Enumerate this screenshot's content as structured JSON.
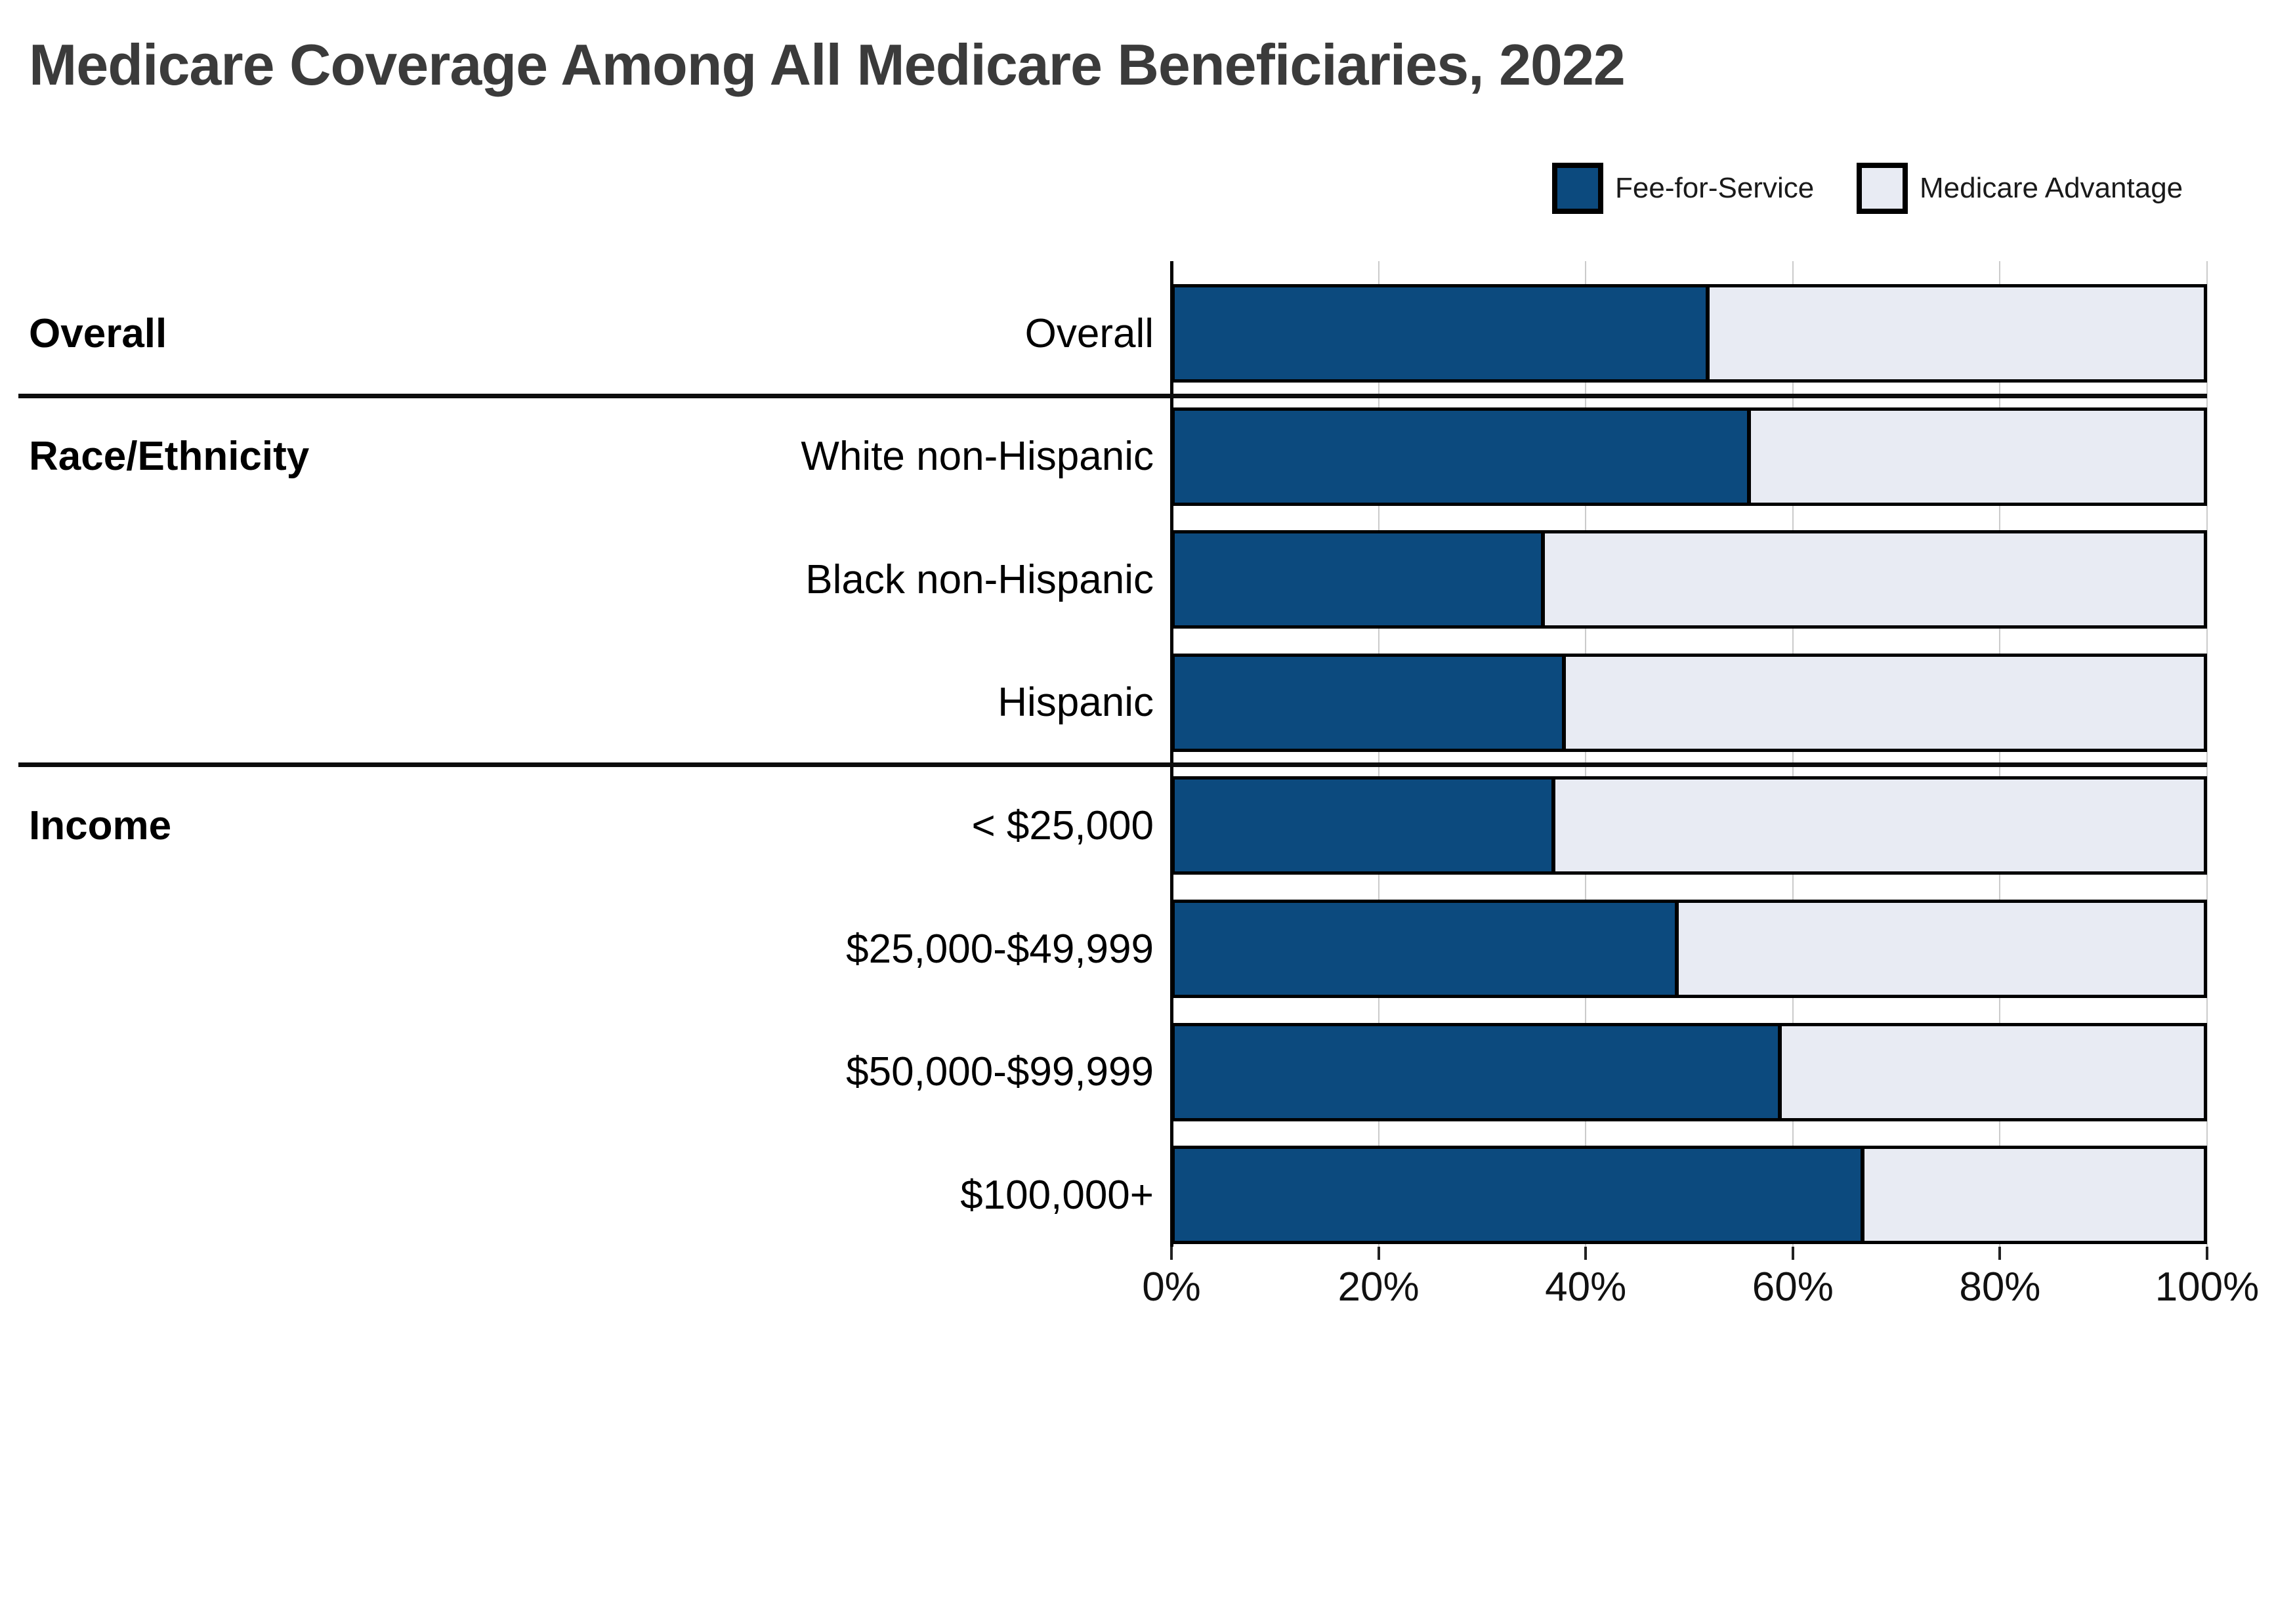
{
  "chart_data": {
    "type": "bar",
    "orientation": "horizontal-stacked",
    "title": "Medicare Coverage Among All Medicare Beneficiaries, 2022",
    "legend": [
      {
        "label": "Fee-for-Service",
        "color": "#0C4A7E"
      },
      {
        "label": "Medicare Advantage",
        "color": "#E8EBF3"
      }
    ],
    "legend_position": "top-right",
    "x_axis": {
      "min": 0,
      "max": 100,
      "tick_labels": [
        "0%",
        "20%",
        "40%",
        "60%",
        "80%",
        "100%"
      ],
      "grid": true
    },
    "series_names": [
      "Fee-for-Service",
      "Medicare Advantage"
    ],
    "groups": [
      {
        "label": "Overall",
        "rows": [
          {
            "label": "Overall",
            "fee_for_service": 52,
            "medicare_advantage": 48
          }
        ]
      },
      {
        "label": "Race/Ethnicity",
        "rows": [
          {
            "label": "White non-Hispanic",
            "fee_for_service": 56,
            "medicare_advantage": 44
          },
          {
            "label": "Black non-Hispanic",
            "fee_for_service": 36,
            "medicare_advantage": 64
          },
          {
            "label": "Hispanic",
            "fee_for_service": 38,
            "medicare_advantage": 62
          }
        ]
      },
      {
        "label": "Income",
        "rows": [
          {
            "label": "< $25,000",
            "fee_for_service": 37,
            "medicare_advantage": 63
          },
          {
            "label": "$25,000-$49,999",
            "fee_for_service": 49,
            "medicare_advantage": 51
          },
          {
            "label": "$50,000-$99,999",
            "fee_for_service": 59,
            "medicare_advantage": 41
          },
          {
            "label": "$100,000+",
            "fee_for_service": 67,
            "medicare_advantage": 33
          }
        ]
      }
    ],
    "colors": {
      "fee_for_service": "#0C4A7E",
      "medicare_advantage": "#E8EBF3",
      "bar_border": "#000000",
      "gridline": "#CBCBCB",
      "axis_line": "#000000",
      "title_color": "#3B3B3B",
      "label_color": "#000000"
    }
  }
}
